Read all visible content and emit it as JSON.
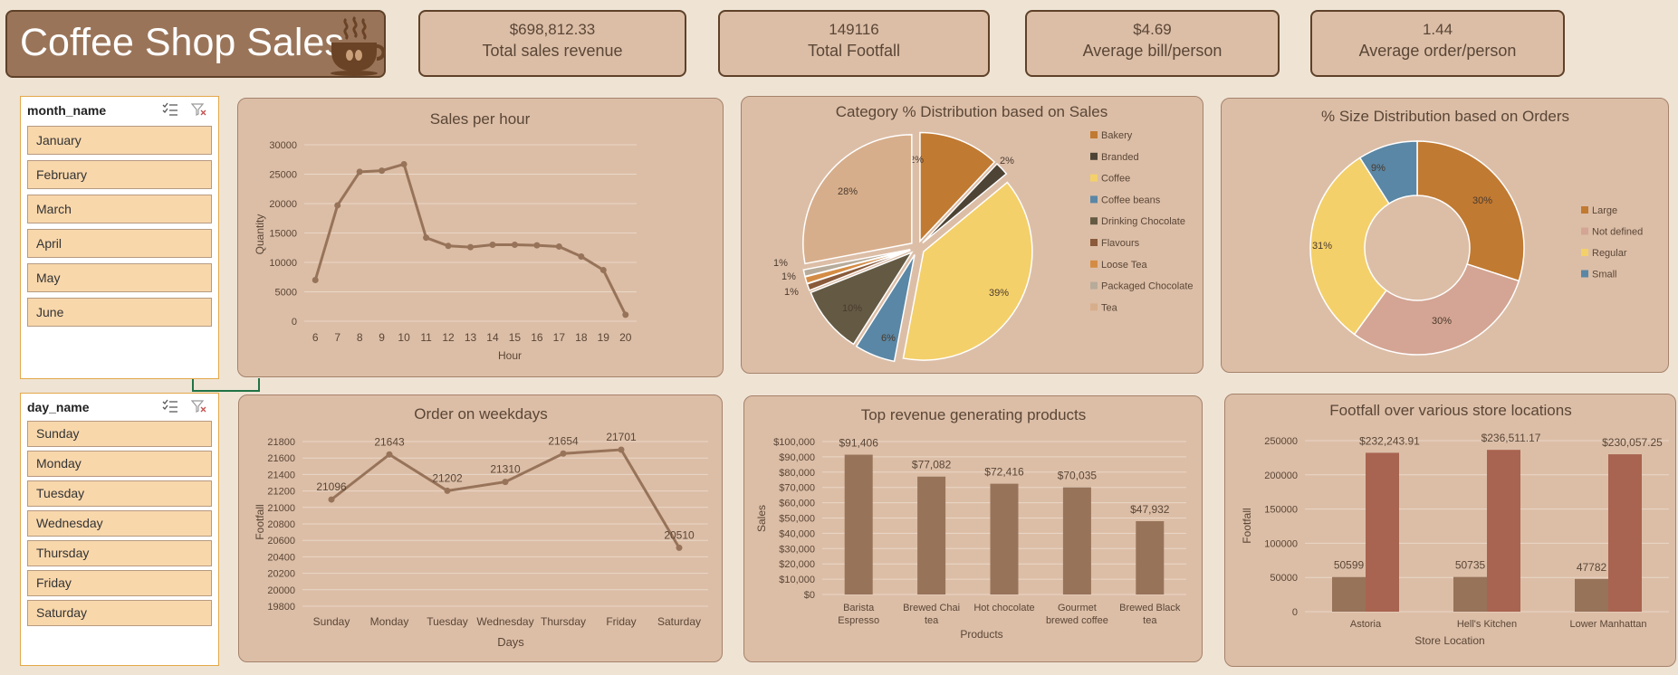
{
  "header": {
    "title": "Coffee Shop Sales"
  },
  "kpis": [
    {
      "value": "$698,812.33",
      "label": "Total sales revenue"
    },
    {
      "value": "149116",
      "label": "Total Footfall"
    },
    {
      "value": "$4.69",
      "label": "Average bill/person"
    },
    {
      "value": "1.44",
      "label": "Average order/person"
    }
  ],
  "slicers": {
    "month": {
      "title": "month_name",
      "items": [
        "January",
        "February",
        "March",
        "April",
        "May",
        "June"
      ]
    },
    "day": {
      "title": "day_name",
      "items": [
        "Sunday",
        "Monday",
        "Tuesday",
        "Wednesday",
        "Thursday",
        "Friday",
        "Saturday"
      ]
    }
  },
  "colors": {
    "accent": "#977359",
    "background": "#efe3d4",
    "panel": "#dcbea7",
    "bar2": "#a86450"
  },
  "chart_data": [
    {
      "id": "hour",
      "type": "line",
      "title": "Sales per hour",
      "xlabel": "Hour",
      "ylabel": "Quantity",
      "x": [
        "6",
        "7",
        "8",
        "9",
        "10",
        "11",
        "12",
        "13",
        "14",
        "15",
        "16",
        "17",
        "18",
        "19",
        "20"
      ],
      "values": [
        7000,
        19700,
        25400,
        25600,
        26700,
        14200,
        12800,
        12600,
        13000,
        13000,
        12900,
        12700,
        11000,
        8700,
        1100
      ],
      "ylim": [
        0,
        30000
      ],
      "yticks": [
        "0",
        "5000",
        "10000",
        "15000",
        "20000",
        "25000",
        "30000"
      ]
    },
    {
      "id": "category",
      "type": "pie",
      "title": "Category % Distribution based on Sales",
      "categories": [
        "Bakery",
        "Branded",
        "Coffee",
        "Coffee beans",
        "Drinking Chocolate",
        "Flavours",
        "Loose Tea",
        "Packaged Chocolate",
        "Tea"
      ],
      "values": [
        12,
        2,
        39,
        6,
        10,
        1,
        1,
        1,
        28
      ],
      "labels": [
        "12%",
        "2%",
        "39%",
        "6%",
        "10%",
        "1%",
        "1%",
        "1%",
        "28%"
      ],
      "colors": [
        "#c17a32",
        "#4d4436",
        "#f4d06a",
        "#5a87a5",
        "#645a44",
        "#8a5a3a",
        "#d48c44",
        "#b7ab9a",
        "#d7ae8b"
      ]
    },
    {
      "id": "size",
      "type": "pie",
      "title": "% Size Distribution based on Orders",
      "categories": [
        "Large",
        "Not defined",
        "Regular",
        "Small"
      ],
      "values": [
        30,
        30,
        31,
        9
      ],
      "labels": [
        "30%",
        "30%",
        "31%",
        "9%"
      ],
      "colors": [
        "#c17a32",
        "#d4a594",
        "#f4d06a",
        "#5a87a5"
      ]
    },
    {
      "id": "weekday",
      "type": "line",
      "title": "Order on weekdays",
      "xlabel": "Days",
      "ylabel": "Footfall",
      "x": [
        "Sunday",
        "Monday",
        "Tuesday",
        "Wednesday",
        "Thursday",
        "Friday",
        "Saturday"
      ],
      "values": [
        21096,
        21643,
        21202,
        21310,
        21654,
        21701,
        20510
      ],
      "labels": [
        "21096",
        "21643",
        "21202",
        "21310",
        "21654",
        "21701",
        "20510"
      ],
      "ylim": [
        19800,
        21800
      ],
      "yticks": [
        "19800",
        "20000",
        "20200",
        "20400",
        "20600",
        "20800",
        "21000",
        "21200",
        "21400",
        "21600",
        "21800"
      ]
    },
    {
      "id": "products",
      "type": "bar",
      "title": "Top revenue generating products",
      "xlabel": "Products",
      "ylabel": "Sales",
      "categories": [
        [
          "Barista",
          "Espresso"
        ],
        [
          "Brewed Chai",
          "tea"
        ],
        [
          "Hot chocolate"
        ],
        [
          "Gourmet",
          "brewed coffee"
        ],
        [
          "Brewed Black",
          "tea"
        ]
      ],
      "values": [
        91406,
        77082,
        72416,
        70035,
        47932
      ],
      "labels": [
        "$91,406",
        "$77,082",
        "$72,416",
        "$70,035",
        "$47,932"
      ],
      "ylim": [
        0,
        100000
      ],
      "yticks": [
        "$0",
        "$10,000",
        "$20,000",
        "$30,000",
        "$40,000",
        "$50,000",
        "$60,000",
        "$70,000",
        "$80,000",
        "$90,000",
        "$100,000"
      ]
    },
    {
      "id": "locations",
      "type": "bar",
      "title": "Footfall over various store locations",
      "xlabel": "Store Location",
      "ylabel": "Footfall",
      "categories": [
        "Astoria",
        "Hell's Kitchen",
        "Lower Manhattan"
      ],
      "series": [
        {
          "values": [
            50599,
            50735,
            47782
          ],
          "labels": [
            "50599",
            "50735",
            "47782"
          ]
        },
        {
          "values": [
            232243.91,
            236511.17,
            230057.25
          ],
          "labels": [
            "$232,243.91",
            "$236,511.17",
            "$230,057.25"
          ]
        }
      ],
      "ylim": [
        0,
        250000
      ],
      "yticks": [
        "0",
        "50000",
        "100000",
        "150000",
        "200000",
        "250000"
      ]
    }
  ]
}
